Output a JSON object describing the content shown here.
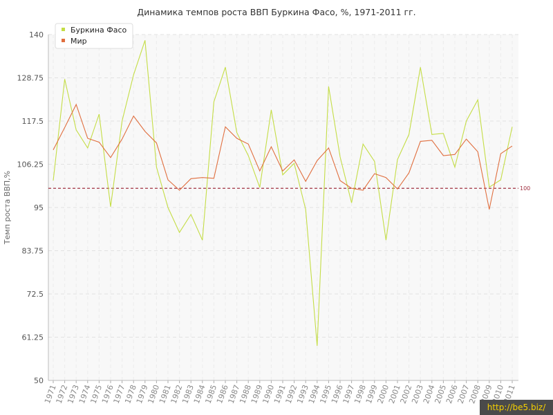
{
  "chart_data": {
    "type": "line",
    "title": "Динамика темпов роста ВВП Буркина Фасо, %, 1971-2011 гг.",
    "xlabel": "",
    "ylabel": "Темп роста ВВП,%",
    "ylim": [
      50,
      140
    ],
    "yticks": [
      "140",
      "128.75",
      "117.5",
      "106.25",
      "95",
      "83.75",
      "72.5",
      "61.25",
      "50"
    ],
    "x": [
      "1971",
      "1972",
      "1973",
      "1974",
      "1975",
      "1976",
      "1977",
      "1978",
      "1979",
      "1980",
      "1981",
      "1982",
      "1983",
      "1984",
      "1985",
      "1986",
      "1987",
      "1988",
      "1989",
      "1990",
      "1991",
      "1992",
      "1993",
      "1994",
      "1995",
      "1996",
      "1997",
      "1998",
      "1999",
      "2000",
      "2001",
      "2002",
      "2003",
      "2004",
      "2005",
      "2006",
      "2007",
      "2008",
      "2009",
      "2010",
      "2011"
    ],
    "series": [
      {
        "name": "Буркина Фасо",
        "color": "#c4dd45",
        "values": [
          102,
          128.4,
          115.2,
          110.5,
          119.3,
          95.2,
          117.5,
          129.5,
          138.5,
          105.5,
          95,
          88.5,
          93.2,
          86.5,
          122.5,
          131.5,
          114.5,
          108.5,
          100.2,
          120.4,
          103.5,
          106.5,
          94.5,
          59,
          126.5,
          108.2,
          96.2,
          111.5,
          107,
          86.5,
          107.5,
          114,
          131.5,
          114,
          114.3,
          105.5,
          117.5,
          123,
          100.3,
          102.2,
          116
        ]
      },
      {
        "name": "Мир",
        "color": "#e06e3e",
        "values": [
          110,
          115.8,
          121.8,
          113,
          112,
          108,
          112.8,
          118.8,
          114.8,
          111.8,
          102.2,
          99.5,
          102.5,
          102.8,
          102.6,
          116,
          113,
          111.5,
          104.5,
          110.8,
          104.5,
          107.4,
          101.8,
          107.2,
          110.5,
          102,
          100,
          99.5,
          103.8,
          102.8,
          99.8,
          104,
          112.2,
          112.5,
          108.5,
          108.8,
          112.8,
          109.5,
          94.5,
          109,
          111
        ]
      }
    ],
    "reference_line": {
      "value": 100,
      "label": "100",
      "color": "#a03040"
    },
    "legend_position": "top-left",
    "grid": true
  },
  "watermark": "http://be5.biz/"
}
